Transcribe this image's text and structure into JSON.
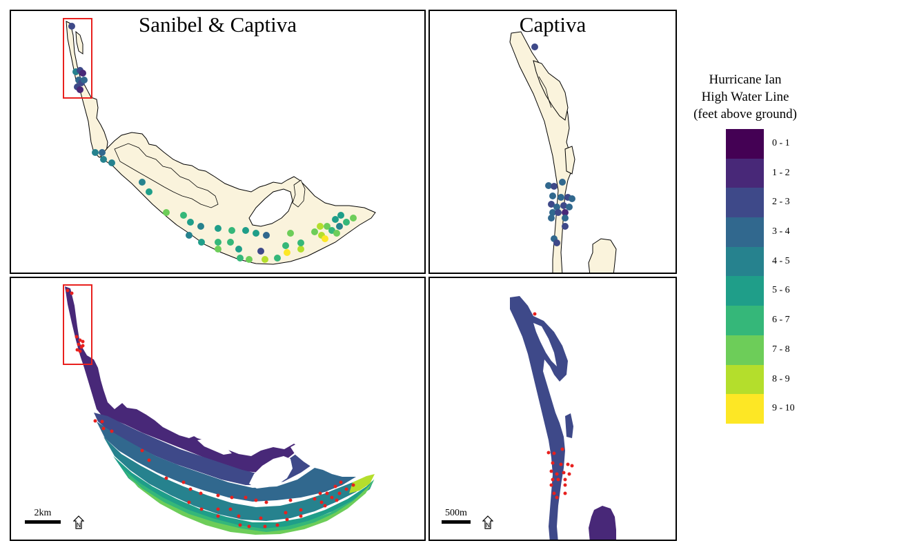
{
  "panels": {
    "top_left_title": "Sanibel & Captiva",
    "top_right_title": "Captiva",
    "scale_left": "2km",
    "scale_right": "500m",
    "north_label": "N"
  },
  "legend": {
    "title_lines": [
      "Hurricane Ian",
      "High Water Line",
      "(feet above ground)"
    ],
    "items": [
      {
        "label": "0 - 1",
        "color": "#440154"
      },
      {
        "label": "1 - 2",
        "color": "#482878"
      },
      {
        "label": "2 - 3",
        "color": "#3E4989"
      },
      {
        "label": "3 - 4",
        "color": "#31688E"
      },
      {
        "label": "4 - 5",
        "color": "#26828E"
      },
      {
        "label": "5 - 6",
        "color": "#1F9E89"
      },
      {
        "label": "6 - 7",
        "color": "#35B779"
      },
      {
        "label": "7 - 8",
        "color": "#6DCD59"
      },
      {
        "label": "8 - 9",
        "color": "#B4DE2C"
      },
      {
        "label": "9 - 10",
        "color": "#FDE725"
      }
    ]
  },
  "colors": {
    "land_fill": "#FAF3DC",
    "highlight_box": "#E8201E",
    "sample_point_red": "#E8201E"
  }
}
